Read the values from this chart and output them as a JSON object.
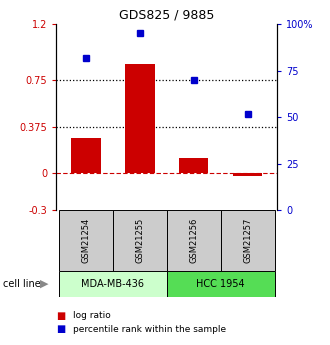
{
  "title": "GDS825 / 9885",
  "samples": [
    "GSM21254",
    "GSM21255",
    "GSM21256",
    "GSM21257"
  ],
  "log_ratios": [
    0.28,
    0.88,
    0.12,
    -0.02
  ],
  "percentile_ranks": [
    82,
    95,
    70,
    52
  ],
  "bar_color": "#cc0000",
  "point_color": "#0000cc",
  "left_ylim": [
    -0.3,
    1.2
  ],
  "right_ylim": [
    0,
    100
  ],
  "left_yticks": [
    -0.3,
    0,
    0.375,
    0.75,
    1.2
  ],
  "left_yticklabels": [
    "-0.3",
    "0",
    "0.375",
    "0.75",
    "1.2"
  ],
  "right_yticks": [
    0,
    25,
    50,
    75,
    100
  ],
  "right_yticklabels": [
    "0",
    "25",
    "50",
    "75",
    "100%"
  ],
  "hline_dotted": [
    0.375,
    0.75
  ],
  "hline_zero_color": "#cc0000",
  "cell_lines": [
    {
      "label": "MDA-MB-436",
      "samples": [
        0,
        1
      ],
      "color": "#ccffcc"
    },
    {
      "label": "HCC 1954",
      "samples": [
        2,
        3
      ],
      "color": "#55dd55"
    }
  ],
  "sample_box_color": "#cccccc",
  "legend_items": [
    {
      "label": "log ratio",
      "color": "#cc0000"
    },
    {
      "label": "percentile rank within the sample",
      "color": "#0000cc"
    }
  ],
  "bar_width": 0.55,
  "marker_size": 5
}
